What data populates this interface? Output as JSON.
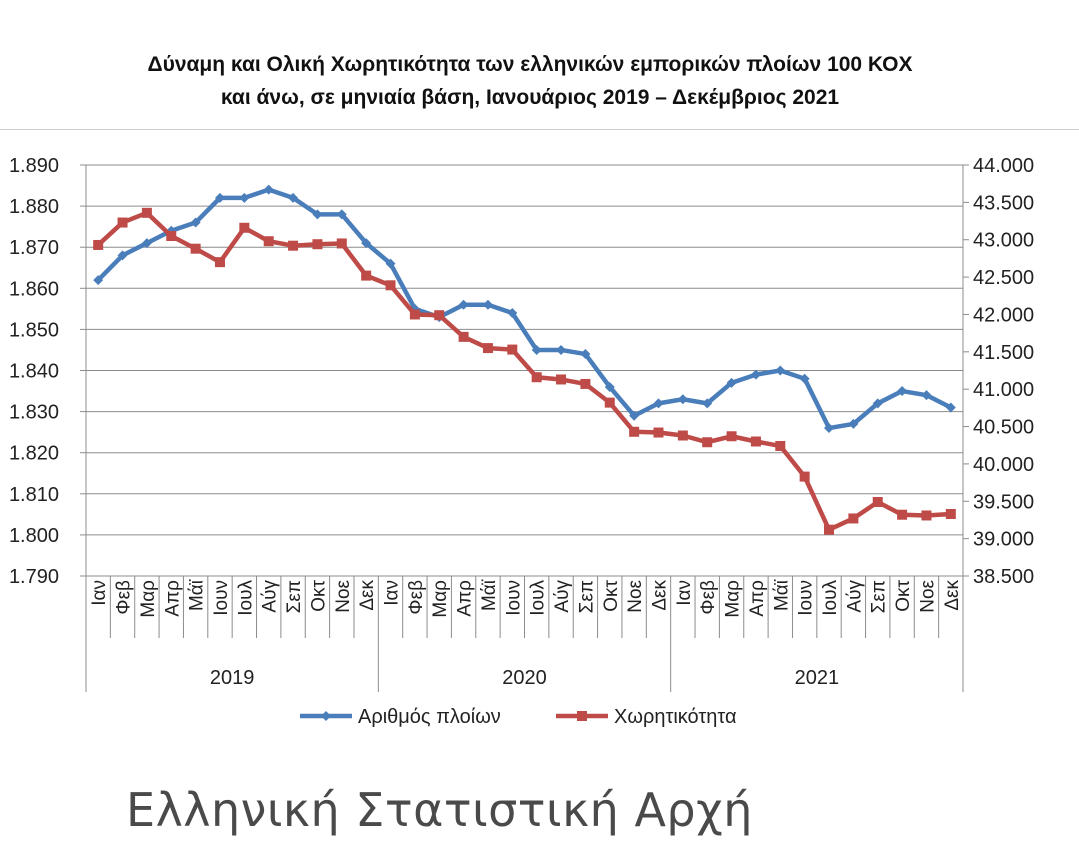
{
  "chart_data": {
    "type": "line",
    "title_lines": [
      "Δύναμη και Ολική Χωρητικότητα των ελληνικών εμπορικών πλοίων 100 ΚΟΧ",
      "και άνω, σε μηνιαία βάση, Ιανουάριος 2019 – Δεκέμβριος 2021"
    ],
    "months": [
      "Ιαν",
      "Φεβ",
      "Μαρ",
      "Απρ",
      "Μάϊ",
      "Ιουν",
      "Ιουλ",
      "Αύγ",
      "Σεπ",
      "Οκτ",
      "Νοε",
      "Δεκ"
    ],
    "years": [
      "2019",
      "2020",
      "2021"
    ],
    "y_left": {
      "min": 1790,
      "max": 1890,
      "step": 10,
      "tick_labels": [
        "1.790",
        "1.800",
        "1.810",
        "1.820",
        "1.830",
        "1.840",
        "1.850",
        "1.860",
        "1.870",
        "1.880",
        "1.890"
      ]
    },
    "y_right": {
      "min": 38500,
      "max": 44000,
      "step": 500,
      "tick_labels": [
        "38.500",
        "39.000",
        "39.500",
        "40.000",
        "40.500",
        "41.000",
        "41.500",
        "42.000",
        "42.500",
        "43.000",
        "43.500",
        "44.000"
      ]
    },
    "grid": true,
    "legend_position": "bottom",
    "series": [
      {
        "name": "Αριθμός πλοίων",
        "axis": "left",
        "color": "#4a7ebb",
        "marker": "diamond",
        "values": [
          1862,
          1868,
          1871,
          1874,
          1876,
          1882,
          1882,
          1884,
          1882,
          1878,
          1878,
          1871,
          1866,
          1855,
          1853,
          1856,
          1856,
          1854,
          1845,
          1845,
          1844,
          1836,
          1829,
          1832,
          1833,
          1832,
          1837,
          1839,
          1840,
          1838,
          1826,
          1827,
          1832,
          1835,
          1834,
          1831
        ]
      },
      {
        "name": "Χωρητικότητα",
        "axis": "right",
        "color": "#be4b48",
        "marker": "square",
        "values": [
          42930,
          43230,
          43360,
          43050,
          42880,
          42700,
          43160,
          42980,
          42920,
          42940,
          42950,
          42520,
          42390,
          42000,
          41990,
          41700,
          41550,
          41530,
          41160,
          41130,
          41070,
          40820,
          40430,
          40420,
          40380,
          40290,
          40370,
          40300,
          40240,
          39830,
          39120,
          39270,
          39490,
          39320,
          39310,
          39330
        ]
      }
    ]
  },
  "footer": {
    "text": "Ελληνική Στατιστική Αρχή"
  }
}
